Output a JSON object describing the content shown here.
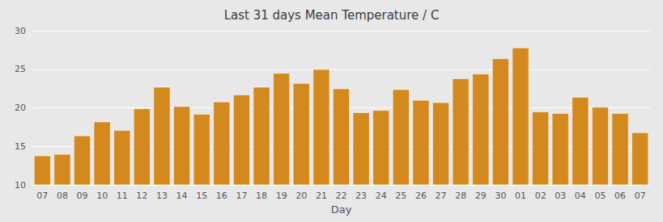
{
  "chart_data": {
    "type": "bar",
    "title": "Last 31 days Mean Temperature / C",
    "xlabel": "Day",
    "categories": [
      "07",
      "08",
      "09",
      "10",
      "11",
      "12",
      "13",
      "14",
      "15",
      "16",
      "17",
      "18",
      "19",
      "20",
      "21",
      "22",
      "23",
      "24",
      "25",
      "26",
      "27",
      "28",
      "29",
      "30",
      "01",
      "02",
      "03",
      "04",
      "05",
      "06",
      "07"
    ],
    "values": [
      13.8,
      14.0,
      16.4,
      18.2,
      17.1,
      19.9,
      22.7,
      20.2,
      19.2,
      20.8,
      21.7,
      22.7,
      24.5,
      23.2,
      25.0,
      22.5,
      19.4,
      19.7,
      22.4,
      21.0,
      20.7,
      23.8,
      24.4,
      26.4,
      27.8,
      19.5,
      19.3,
      21.4,
      20.1,
      19.3,
      16.8
    ],
    "color": "#d4891e",
    "ylim": [
      10,
      30
    ],
    "yticks": [
      10,
      15,
      20,
      25,
      30
    ],
    "grid": true
  }
}
